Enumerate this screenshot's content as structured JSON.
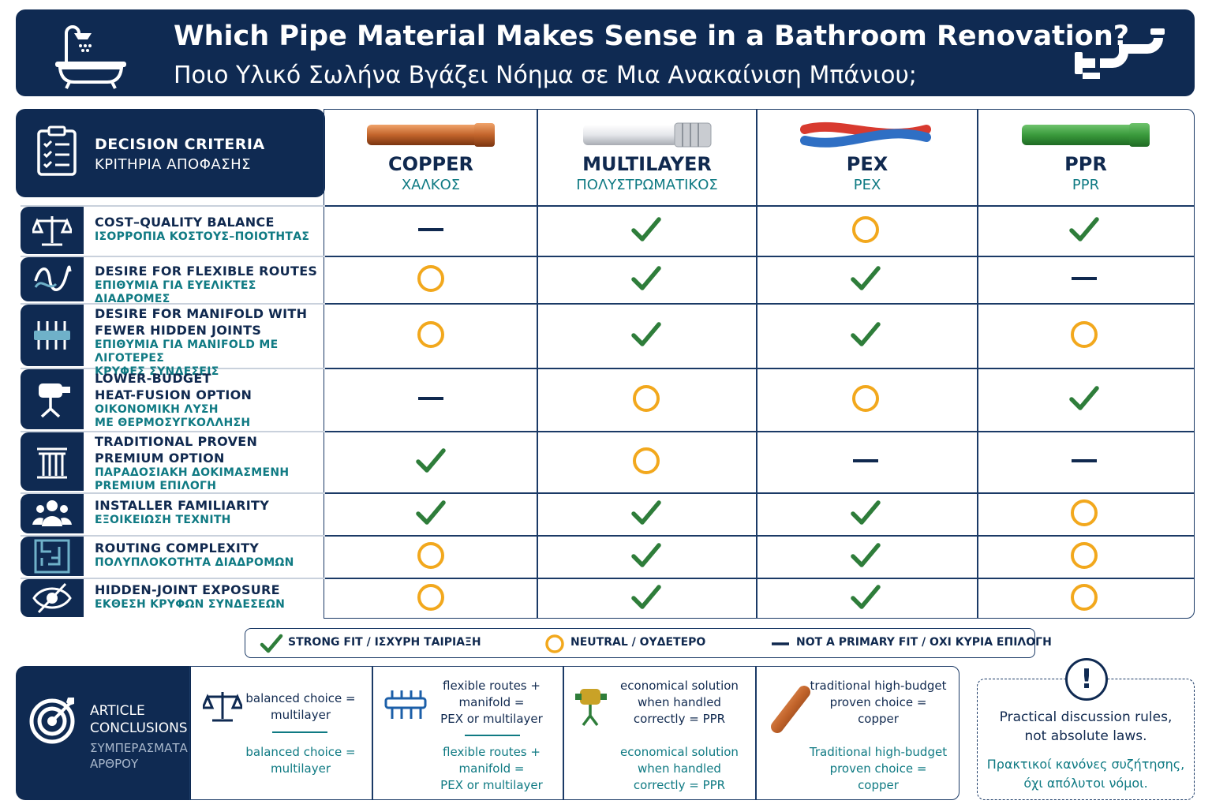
{
  "header": {
    "title_en": "Which Pipe Material Makes Sense in a Bathroom Renovation?",
    "title_gr": "Ποιο Υλικό Σωλήνα Βγάζει Νόημα σε Μια Ανακαίνιση Μπάνιου;",
    "left_icon": "bathtub-shower-icon",
    "right_icon": "pipe-elbow-icon"
  },
  "criteria_header": {
    "en": "DECISION CRITERIA",
    "gr": "ΚΡΙΤΗΡΙΑ ΑΠΟΦΑΣΗΣ",
    "icon": "clipboard-checklist-icon"
  },
  "columns": [
    {
      "en": "COPPER",
      "gr": "ΧΑΛΚΟΣ",
      "icon": "copper-pipe-icon"
    },
    {
      "en": "MULTILAYER",
      "gr": "ΠΟΛΥΣΤΡΩΜΑΤΙΚΟΣ",
      "icon": "multilayer-pipe-icon"
    },
    {
      "en": "PEX",
      "gr": "PEX",
      "icon": "pex-pipe-icon"
    },
    {
      "en": "PPR",
      "gr": "PPR",
      "icon": "ppr-pipe-icon"
    }
  ],
  "rows": [
    {
      "en": [
        "COST–QUALITY BALANCE"
      ],
      "gr": [
        "ΙΣΟΡΡΟΠΙΑ ΚΟΣΤΟΥΣ–ΠΟΙΟΤΗΤΑΣ"
      ],
      "icon": "balance-scale-icon",
      "marks": [
        "dash",
        "check",
        "circle",
        "check"
      ]
    },
    {
      "en": [
        "DESIRE FOR FLEXIBLE ROUTES"
      ],
      "gr": [
        "ΕΠΙΘΥΜΙΑ ΓΙΑ ΕΥΕΛΙΚΤΕΣ ΔΙΑΔΡΟΜΕΣ"
      ],
      "icon": "wavy-route-icon",
      "marks": [
        "circle",
        "check",
        "check",
        "dash"
      ]
    },
    {
      "en": [
        "DESIRE FOR MANIFOLD WITH",
        "FEWER HIDDEN JOINTS"
      ],
      "gr": [
        "ΕΠΙΘΥΜΙΑ ΓΙΑ MANIFOLD ΜΕ ΛΙΓΟΤΕΡΕΣ",
        "ΚΡΥΦΕΣ ΣΥΝΔΕΣΕΙΣ"
      ],
      "icon": "manifold-icon",
      "marks": [
        "circle",
        "check",
        "check",
        "circle"
      ]
    },
    {
      "en": [
        "LOWER-BUDGET",
        "HEAT-FUSION OPTION"
      ],
      "gr": [
        "ΟΙΚΟΝΟΜΙΚΗ ΛΥΣΗ",
        "ΜΕ ΘΕΡΜΟΣΥΓΚΟΛΛΗΣΗ"
      ],
      "icon": "fusion-welder-icon",
      "marks": [
        "dash",
        "circle",
        "circle",
        "check"
      ]
    },
    {
      "en": [
        "TRADITIONAL PROVEN",
        "PREMIUM OPTION"
      ],
      "gr": [
        "ΠΑΡΑΔΟΣΙΑΚΗ ΔΟΚΙΜΑΣΜΕΝΗ",
        "PREMIUM ΕΠΙΛΟΓΗ"
      ],
      "icon": "column-pillar-icon",
      "marks": [
        "check",
        "circle",
        "dash",
        "dash"
      ]
    },
    {
      "en": [
        "INSTALLER FAMILIARITY"
      ],
      "gr": [
        "ΕΞΟΙΚΕΙΩΣΗ ΤΕΧΝΙΤΗ"
      ],
      "icon": "group-people-icon",
      "marks": [
        "check",
        "check",
        "check",
        "circle"
      ]
    },
    {
      "en": [
        "ROUTING COMPLEXITY"
      ],
      "gr": [
        "ΠΟΛΥΠΛΟΚΟΤΗΤΑ ΔΙΑΔΡΟΜΩΝ"
      ],
      "icon": "maze-icon",
      "marks": [
        "circle",
        "check",
        "check",
        "circle"
      ]
    },
    {
      "en": [
        "HIDDEN-JOINT EXPOSURE"
      ],
      "gr": [
        "ΕΚΘΕΣΗ ΚΡΥΦΩΝ ΣΥΝΔΕΣΕΩΝ"
      ],
      "icon": "eye-slash-icon",
      "marks": [
        "circle",
        "check",
        "check",
        "circle"
      ]
    }
  ],
  "legend": {
    "strong": "STRONG FIT / ΙΣΧΥΡΗ ΤΑΙΡΙΑΞΗ",
    "neutral": "NEUTRAL / ΟΥΔΕΤΕΡΟ",
    "not_primary": "NOT A PRIMARY FIT / ΟΧΙ ΚΥΡΙΑ ΕΠΙΛΟΓΗ"
  },
  "colors": {
    "navy": "#0f2a52",
    "teal": "#0f7a83",
    "check": "#2e7d3a",
    "circle": "#f2a81d",
    "dash": "#10294f"
  },
  "conclusions": {
    "title_en": [
      "ARTICLE",
      "CONCLUSIONS"
    ],
    "title_gr": [
      "ΣΥΜΠΕΡΑΣΜΑΤΑ",
      "ΑΡΘΡΟΥ"
    ],
    "icon": "target-arrow-icon",
    "boxes": [
      {
        "icon": "balance-scale-icon",
        "en": [
          "balanced choice =",
          "multilayer"
        ],
        "gr": [
          "balanced choice =",
          "multilayer"
        ]
      },
      {
        "icon": "manifold-icon",
        "en": [
          "flexible routes +",
          "manifold =",
          "PEX or multilayer"
        ],
        "gr": [
          "flexible routes +",
          "manifold =",
          "PEX or multilayer"
        ]
      },
      {
        "icon": "fusion-welder-icon",
        "en": [
          "economical solution",
          "when handled",
          "correctly = PPR"
        ],
        "gr": [
          "economical solution",
          "when handled",
          "correctly = PPR"
        ]
      },
      {
        "icon": "copper-pipe-icon",
        "en": [
          "traditional high-budget",
          "proven choice =",
          "copper"
        ],
        "gr": [
          "Traditional high-budget",
          "proven choice =",
          "copper"
        ]
      }
    ]
  },
  "note": {
    "badge": "!",
    "en": [
      "Practical discussion rules,",
      "not absolute laws."
    ],
    "gr": [
      "Πρακτικοί κανόνες συζήτησης,",
      "όχι απόλυτοι νόμοι."
    ]
  }
}
